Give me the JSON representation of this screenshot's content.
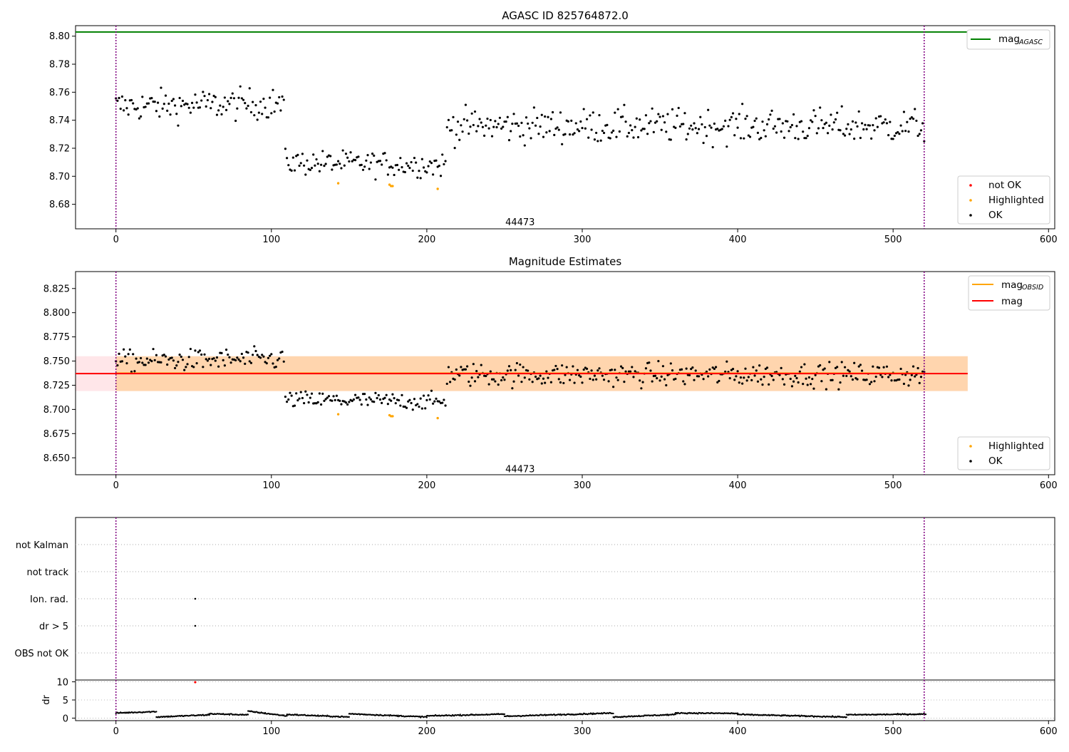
{
  "chart_data": [
    {
      "type": "scatter",
      "title": "AGASC ID 825764872.0",
      "xlim": [
        -26,
        604
      ],
      "ylim": [
        8.6625,
        8.8075
      ],
      "xticks": [
        0,
        100,
        200,
        300,
        400,
        500,
        600
      ],
      "yticks": [
        8.68,
        8.7,
        8.72,
        8.74,
        8.76,
        8.78,
        8.8
      ],
      "ytick_decimals": 2,
      "obsid_label": {
        "text": "44473",
        "x": 260,
        "y": 8.665
      },
      "obs_boundaries": [
        0,
        520
      ],
      "reference_line": {
        "name": "mag",
        "subscript": "AGASC",
        "value": 8.803,
        "x_end": 548,
        "color": "#008000"
      },
      "legend_lines": [
        {
          "name": "mag",
          "subscript": "AGASC",
          "color": "#008000"
        }
      ],
      "legend_points": [
        {
          "name": "not OK",
          "color": "#ff0000"
        },
        {
          "name": "Highlighted",
          "color": "#ffa500"
        },
        {
          "name": "OK",
          "color": "#000000"
        }
      ],
      "highlighted": [
        [
          143,
          8.695
        ],
        [
          176,
          8.694
        ],
        [
          177,
          8.693
        ],
        [
          178,
          8.693
        ],
        [
          207,
          8.691
        ]
      ],
      "ok_segments": [
        {
          "x0": 0,
          "x1": 108,
          "y0": 8.75,
          "y1": 8.752,
          "spread": 0.01
        },
        {
          "x0": 109,
          "x1": 212,
          "y0": 8.71,
          "y1": 8.708,
          "spread": 0.008
        },
        {
          "x0": 213,
          "x1": 520,
          "y0": 8.736,
          "y1": 8.736,
          "spread": 0.011
        }
      ]
    },
    {
      "type": "scatter",
      "title": "Magnitude Estimates",
      "xlim": [
        -26,
        604
      ],
      "ylim": [
        8.6325,
        8.8425
      ],
      "xticks": [
        0,
        100,
        200,
        300,
        400,
        500,
        600
      ],
      "yticks": [
        8.65,
        8.675,
        8.7,
        8.725,
        8.75,
        8.775,
        8.8,
        8.825
      ],
      "ytick_decimals": 3,
      "obsid_label": {
        "text": "44473",
        "x": 260,
        "y": 8.635
      },
      "obs_boundaries": [
        0,
        520
      ],
      "mean_lines": [
        {
          "name": "mag",
          "subscript": "OBSID",
          "value": 8.7375,
          "x_start": 0,
          "x_end": 520,
          "color": "#ffa500"
        },
        {
          "name": "mag",
          "subscript": "",
          "value": 8.737,
          "x_start": -26,
          "x_end": 548,
          "color": "#ff0000"
        }
      ],
      "bands": [
        {
          "x_start": -26,
          "x_end": 548,
          "low": 8.719,
          "high": 8.755,
          "color": "#ffb6c1",
          "opacity": 0.35
        },
        {
          "x_start": 0,
          "x_end": 548,
          "low": 8.719,
          "high": 8.755,
          "color": "#ffa500",
          "opacity": 0.25
        }
      ],
      "legend_lines": [
        {
          "name": "mag",
          "subscript": "OBSID",
          "color": "#ffa500"
        },
        {
          "name": "mag",
          "subscript": "",
          "color": "#ff0000"
        }
      ],
      "legend_points": [
        {
          "name": "Highlighted",
          "color": "#ffa500"
        },
        {
          "name": "OK",
          "color": "#000000"
        }
      ],
      "highlighted": [
        [
          143,
          8.695
        ],
        [
          176,
          8.694
        ],
        [
          177,
          8.693
        ],
        [
          178,
          8.693
        ],
        [
          207,
          8.691
        ]
      ],
      "ok_segments": [
        {
          "x0": 0,
          "x1": 108,
          "y0": 8.75,
          "y1": 8.752,
          "spread": 0.01
        },
        {
          "x0": 109,
          "x1": 212,
          "y0": 8.71,
          "y1": 8.708,
          "spread": 0.008
        },
        {
          "x0": 213,
          "x1": 520,
          "y0": 8.736,
          "y1": 8.736,
          "spread": 0.011
        }
      ]
    },
    {
      "type": "scatter",
      "title": "",
      "xlim": [
        -26,
        604
      ],
      "xticks": [
        0,
        100,
        200,
        300,
        400,
        500,
        600
      ],
      "obs_boundaries": [
        0,
        520
      ],
      "flag_rows": [
        "not Kalman",
        "not track",
        "Ion. rad.",
        "dr > 5",
        "OBS not OK"
      ],
      "flag_points": [
        {
          "row": "Ion. rad.",
          "x": 51
        },
        {
          "row": "dr > 5",
          "x": 51
        }
      ],
      "dr": {
        "ylabel": "dr",
        "ylim": [
          -0.5,
          10.5
        ],
        "yticks": [
          0,
          5,
          10
        ],
        "flagged": [
          [
            51,
            9.9
          ]
        ],
        "segments": [
          {
            "x0": 0,
            "x1": 26,
            "y0": 1.4,
            "y1": 1.8
          },
          {
            "x0": 26,
            "x1": 60,
            "y0": 0.3,
            "y1": 0.9
          },
          {
            "x0": 60,
            "x1": 85,
            "y0": 1.2,
            "y1": 0.9
          },
          {
            "x0": 85,
            "x1": 110,
            "y0": 1.9,
            "y1": 0.6
          },
          {
            "x0": 110,
            "x1": 150,
            "y0": 1.0,
            "y1": 0.3
          },
          {
            "x0": 150,
            "x1": 200,
            "y0": 1.2,
            "y1": 0.3
          },
          {
            "x0": 200,
            "x1": 250,
            "y0": 0.6,
            "y1": 1.1
          },
          {
            "x0": 250,
            "x1": 320,
            "y0": 0.5,
            "y1": 1.4
          },
          {
            "x0": 320,
            "x1": 360,
            "y0": 0.3,
            "y1": 1.0
          },
          {
            "x0": 360,
            "x1": 400,
            "y0": 1.4,
            "y1": 1.3
          },
          {
            "x0": 400,
            "x1": 470,
            "y0": 1.0,
            "y1": 0.3
          },
          {
            "x0": 470,
            "x1": 521,
            "y0": 0.9,
            "y1": 1.1
          }
        ]
      }
    }
  ]
}
